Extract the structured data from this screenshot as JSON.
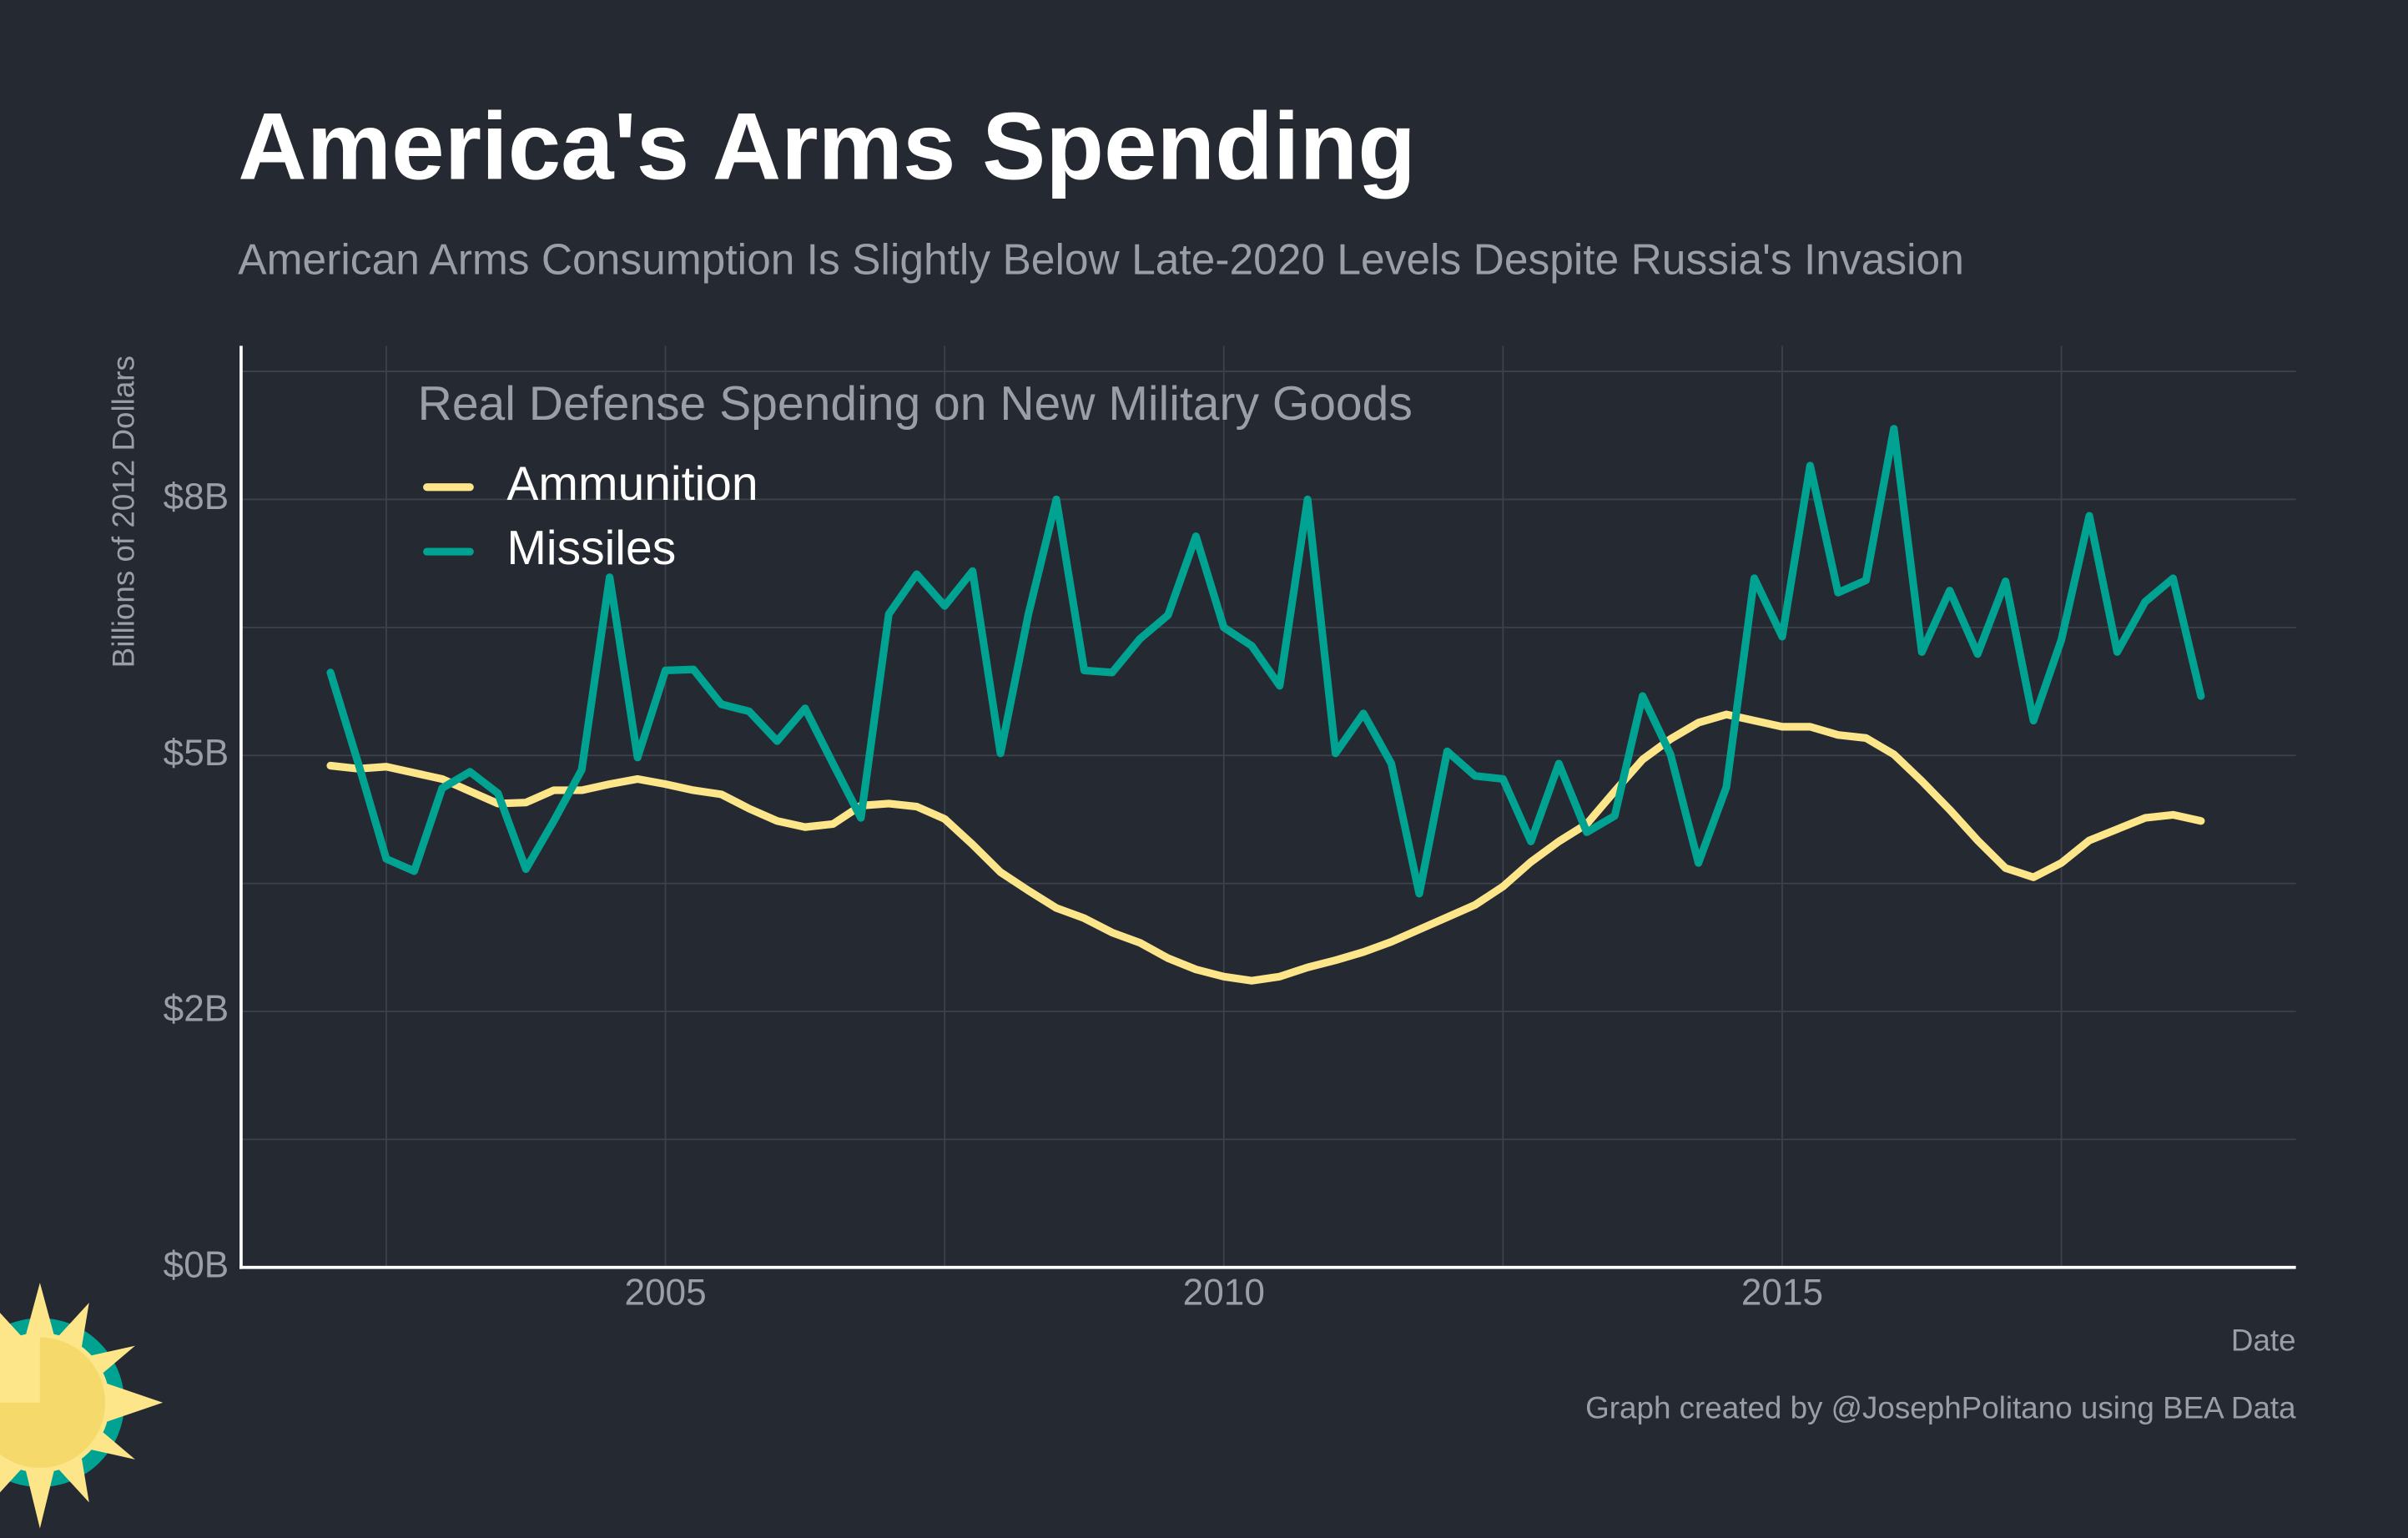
{
  "chart_data": {
    "type": "line",
    "title": "America's Arms Spending",
    "subtitle": "American Arms Consumption Is Slightly Below Late-2020 Levels Despite Russia's Invasion",
    "legend_title": "Real Defense Spending on New Military Goods",
    "y_label": "Billions of 2012 Dollars",
    "x_label": "Date",
    "caption": "Graph created by @JosephPolitano using BEA Data",
    "legend": "top-left",
    "grid": true,
    "x": [
      2002,
      2002.25,
      2002.5,
      2002.75,
      2003,
      2003.25,
      2003.5,
      2003.75,
      2004,
      2004.25,
      2004.5,
      2004.75,
      2005,
      2005.25,
      2005.5,
      2005.75,
      2006,
      2006.25,
      2006.5,
      2006.75,
      2007,
      2007.25,
      2007.5,
      2007.75,
      2008,
      2008.25,
      2008.5,
      2008.75,
      2009,
      2009.25,
      2009.5,
      2009.75,
      2010,
      2010.25,
      2010.5,
      2010.75,
      2011,
      2011.25,
      2011.5,
      2011.75,
      2012,
      2012.25,
      2012.5,
      2012.75,
      2013,
      2013.25,
      2013.5,
      2013.75,
      2014,
      2014.25,
      2014.5,
      2014.75,
      2015,
      2015.25,
      2015.5,
      2015.75,
      2016,
      2016.25,
      2016.5,
      2016.75,
      2017,
      2017.25,
      2017.5,
      2017.75,
      2018,
      2018.25,
      2018.5,
      2018.75
    ],
    "series": [
      {
        "name": "Ammunition",
        "color": "#fde58a",
        "values": [
          4.9,
          4.87,
          4.89,
          4.83,
          4.77,
          4.65,
          4.53,
          4.54,
          4.66,
          4.66,
          4.72,
          4.77,
          4.72,
          4.66,
          4.62,
          4.48,
          4.36,
          4.3,
          4.33,
          4.51,
          4.53,
          4.5,
          4.38,
          4.13,
          3.86,
          3.68,
          3.51,
          3.41,
          3.27,
          3.17,
          3.02,
          2.91,
          2.84,
          2.8,
          2.84,
          2.93,
          3.0,
          3.08,
          3.18,
          3.3,
          3.42,
          3.54,
          3.72,
          3.96,
          4.16,
          4.33,
          4.65,
          4.96,
          5.16,
          5.32,
          5.4,
          5.34,
          5.28,
          5.28,
          5.2,
          5.17,
          5.01,
          4.75,
          4.47,
          4.17,
          3.9,
          3.81,
          3.95,
          4.17,
          4.28,
          4.39,
          4.42,
          4.36
        ]
      },
      {
        "name": "Missiles",
        "color": "#00a391",
        "values": [
          5.81,
          4.92,
          3.99,
          3.87,
          4.68,
          4.84,
          4.63,
          3.89,
          4.36,
          4.86,
          6.74,
          4.98,
          5.83,
          5.84,
          5.5,
          5.43,
          5.14,
          5.46,
          4.92,
          4.39,
          6.38,
          6.77,
          6.46,
          6.8,
          5.02,
          6.38,
          7.5,
          5.83,
          5.81,
          6.14,
          6.37,
          7.14,
          6.25,
          6.07,
          5.68,
          7.5,
          5.02,
          5.41,
          4.92,
          3.65,
          5.04,
          4.8,
          4.77,
          4.16,
          4.92,
          4.25,
          4.41,
          5.58,
          5.01,
          3.95,
          4.69,
          6.73,
          6.16,
          7.83,
          6.59,
          6.71,
          8.19,
          6.01,
          6.61,
          5.99,
          6.7,
          5.34,
          6.13,
          7.34,
          6.01,
          6.5,
          6.73,
          5.58
        ]
      }
    ],
    "xlim": [
      2001.2,
      2019.6
    ],
    "xticks": [
      2005,
      2010,
      2015
    ],
    "xminorticks": [
      2002.5,
      2007.5,
      2012.5,
      2017.5
    ],
    "ylim": [
      0,
      9
    ],
    "yticks": [
      {
        "value": 0,
        "label": "$0B"
      },
      {
        "value": 2.5,
        "label": "$2B"
      },
      {
        "value": 5,
        "label": "$5B"
      },
      {
        "value": 7.5,
        "label": "$8B"
      }
    ],
    "yminorticks": [
      1.25,
      3.75,
      6.25,
      8.75
    ]
  }
}
